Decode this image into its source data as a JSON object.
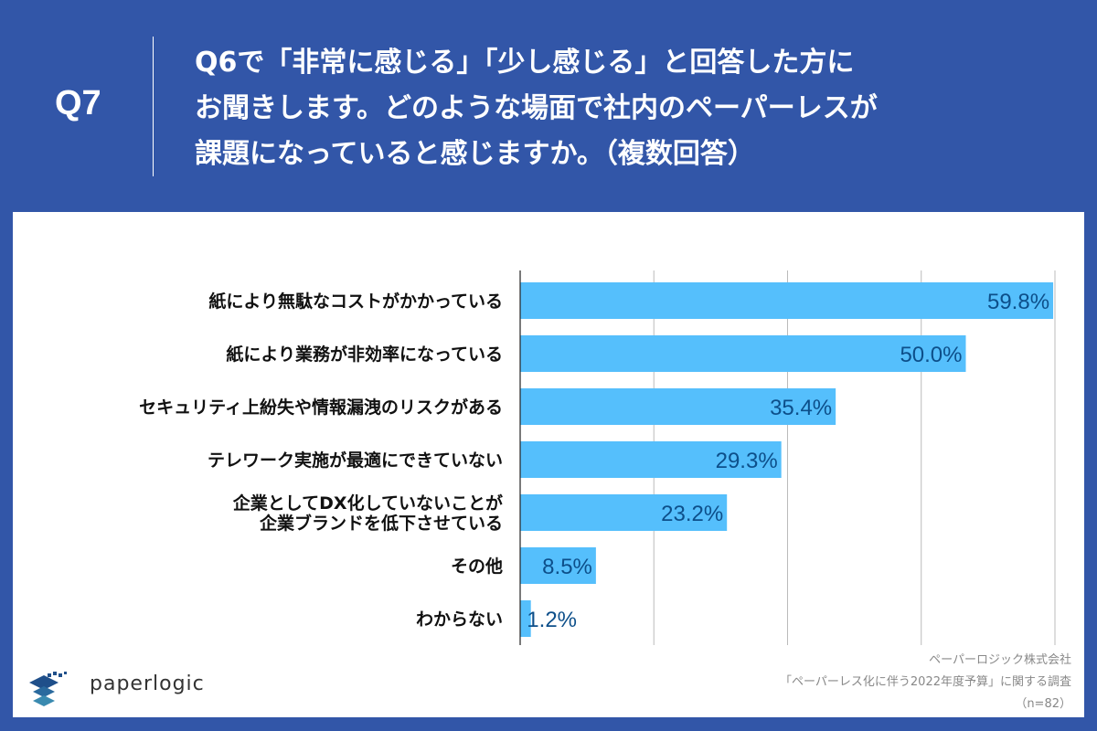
{
  "header": {
    "qnum": "Q7",
    "title_lines": [
      "Q6で「非常に感じる」「少し感じる」と回答した方に",
      "お聞きします。どのような場面で社内のペーパーレスが",
      "課題になっていると感じますか。（複数回答）"
    ]
  },
  "chart_data": {
    "type": "bar",
    "orientation": "horizontal",
    "categories": [
      [
        "紙により無駄なコストがかかっている"
      ],
      [
        "紙により業務が非効率になっている"
      ],
      [
        "セキュリティ上紛失や情報漏洩のリスクがある"
      ],
      [
        "テレワーク実施が最適にできていない"
      ],
      [
        "企業としてDX化していないことが",
        "企業ブランドを低下させている"
      ],
      [
        "その他"
      ],
      [
        "わからない"
      ]
    ],
    "values": [
      59.8,
      50.0,
      35.4,
      29.3,
      23.2,
      8.5,
      1.2
    ],
    "data_labels": [
      "59.8%",
      "50.0%",
      "35.4%",
      "29.3%",
      "23.2%",
      "8.5%",
      "1.2%"
    ],
    "xlim": [
      0,
      60
    ],
    "gridlines": [
      15,
      30,
      45,
      60
    ],
    "grid": true,
    "bar_color": "#55bffc",
    "label_color": "#0d4f8a"
  },
  "footer": {
    "company": "ペーパーロジック株式会社",
    "survey": "「ペーパーレス化に伴う2022年度予算」に関する調査",
    "sample": "（n=82）",
    "logo_text": "paperlogic"
  }
}
